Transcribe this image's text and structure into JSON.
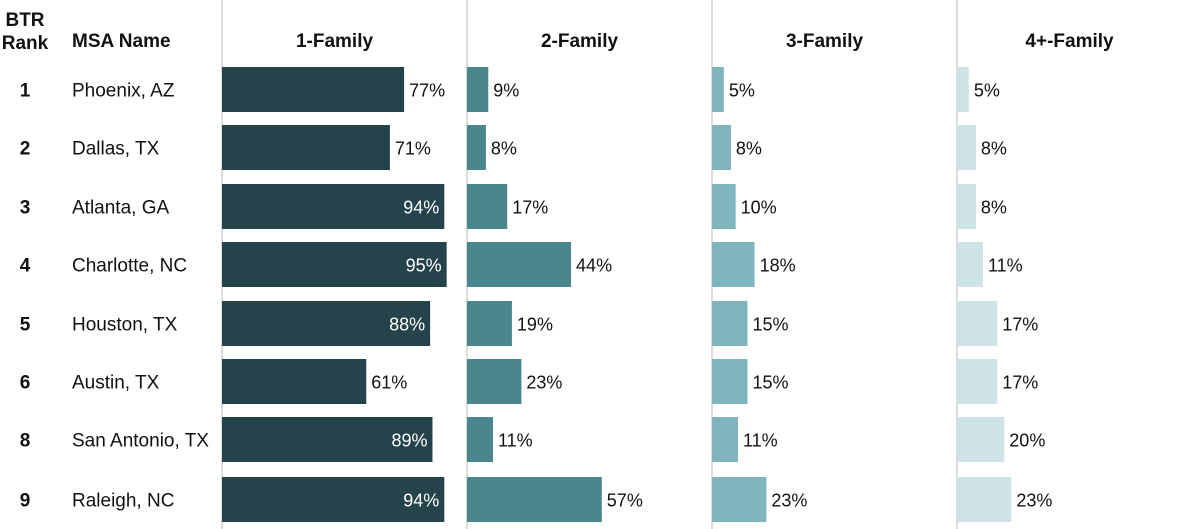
{
  "chart_data": {
    "type": "bar",
    "columns": {
      "rank_header_line1": "BTR",
      "rank_header_line2": "Rank",
      "name_header": "MSA Name"
    },
    "rows": [
      {
        "rank": "1",
        "name": "Phoenix, AZ"
      },
      {
        "rank": "2",
        "name": "Dallas, TX"
      },
      {
        "rank": "3",
        "name": "Atlanta, GA"
      },
      {
        "rank": "4",
        "name": "Charlotte, NC"
      },
      {
        "rank": "5",
        "name": "Houston, TX"
      },
      {
        "rank": "6",
        "name": "Austin, TX"
      },
      {
        "rank": "8",
        "name": "San Antonio, TX"
      },
      {
        "rank": "9",
        "name": "Raleigh, NC"
      }
    ],
    "series": [
      {
        "name": "1-Family",
        "color": "#25434a",
        "values": [
          77,
          71,
          94,
          95,
          88,
          61,
          89,
          94
        ]
      },
      {
        "name": "2-Family",
        "color": "#4a868c",
        "values": [
          9,
          8,
          17,
          44,
          19,
          23,
          11,
          57
        ]
      },
      {
        "name": "3-Family",
        "color": "#7fb5bd",
        "values": [
          5,
          8,
          10,
          18,
          15,
          15,
          11,
          23
        ]
      },
      {
        "name": "4+-Family",
        "color": "#cfe3e6",
        "values": [
          5,
          8,
          8,
          11,
          17,
          17,
          20,
          23
        ]
      }
    ],
    "value_suffix": "%",
    "xlim": [
      0,
      100
    ],
    "grid": false
  }
}
